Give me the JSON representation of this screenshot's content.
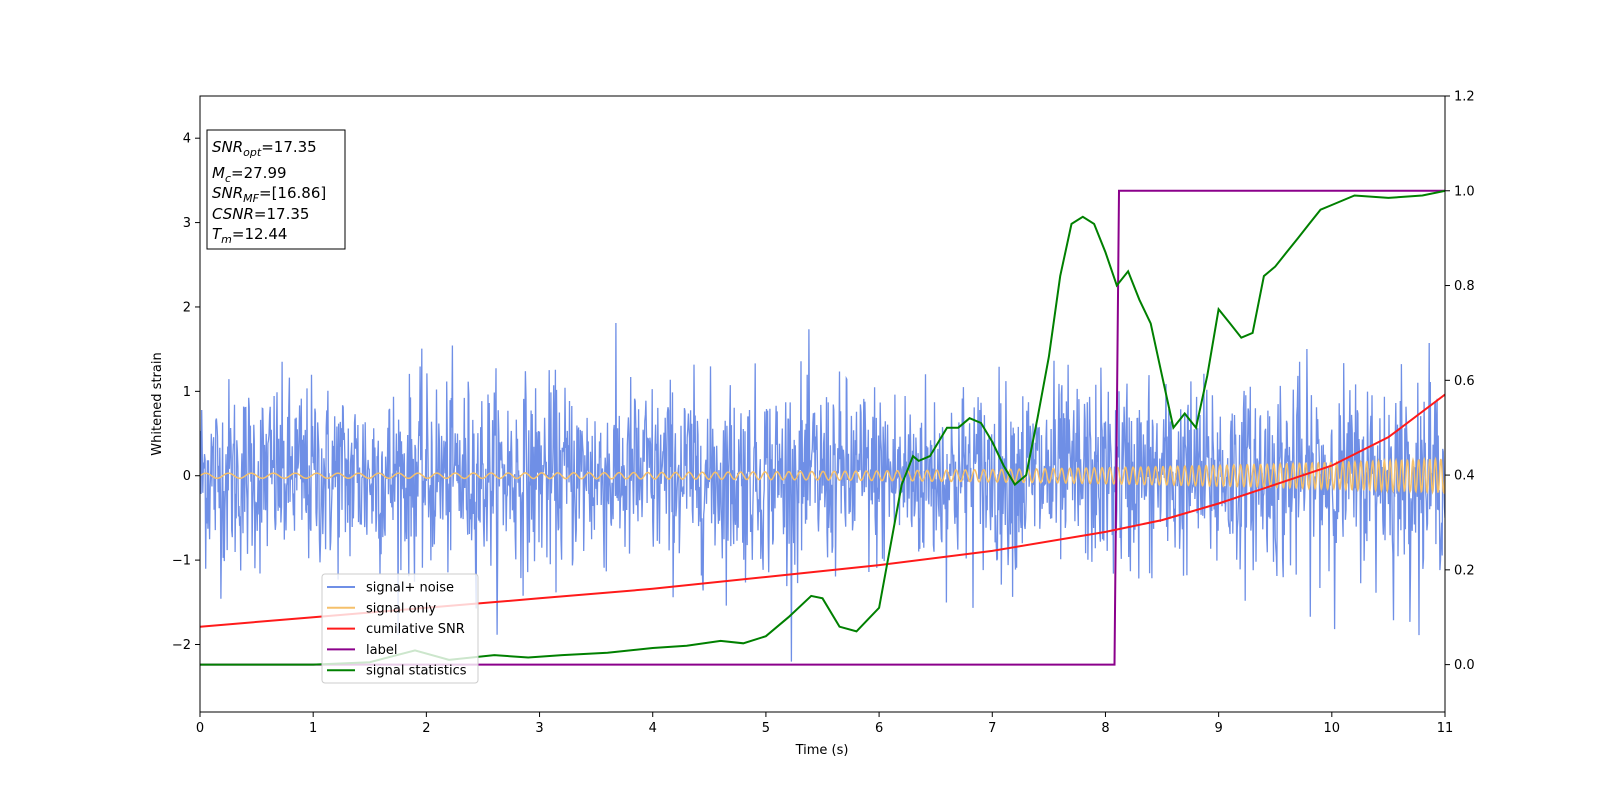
{
  "chart_data": {
    "type": "line",
    "xlabel": "Time (s)",
    "ylabel": "Whitened strain",
    "xlim": [
      0,
      11
    ],
    "ylim_left": [
      -2.8,
      4.5
    ],
    "ylim_right": [
      -0.1,
      1.2
    ],
    "x_ticks": [
      0,
      1,
      2,
      3,
      4,
      5,
      6,
      7,
      8,
      9,
      10,
      11
    ],
    "y_ticks_left": [
      -2,
      -1,
      0,
      1,
      2,
      3,
      4
    ],
    "y_ticks_right": [
      "0.0",
      "0.2",
      "0.4",
      "0.6",
      "0.8",
      "1.0",
      "1.2"
    ],
    "y_ticks_right_values": [
      0.0,
      0.2,
      0.4,
      0.6,
      0.8,
      1.0,
      1.2
    ],
    "grid": false,
    "legend_position": "lower-left",
    "info_box": [
      {
        "sym": "SNR",
        "sub": "opt",
        "val": "=17.35"
      },
      {
        "sym": "M",
        "sub": "c",
        "val": "=27.99"
      },
      {
        "sym": "SNR",
        "sub": "MF",
        "val": "=[16.86]"
      },
      {
        "sym": "CSNR",
        "sub": "",
        "val": "=17.35"
      },
      {
        "sym": "T",
        "sub": "m",
        "val": "=12.44"
      }
    ],
    "series": [
      {
        "name": "signal+ noise",
        "color": "#6f8fe6",
        "axis": "left",
        "description_amplitude_std": 0.55,
        "sample_count": 2200
      },
      {
        "name": "signal only",
        "color": "#f5c06b",
        "axis": "left",
        "chirp": {
          "amp_start": 0.03,
          "amp_end": 0.2,
          "freq_start": 9,
          "freq_end": 20,
          "t_merge": 12.44
        }
      },
      {
        "name": "cumilative SNR",
        "color": "#ff1a1a",
        "axis": "right",
        "x": [
          0,
          1,
          2,
          3,
          4,
          5,
          6,
          7,
          8,
          8.5,
          9,
          9.5,
          10,
          10.5,
          11
        ],
        "y": [
          0.08,
          0.1,
          0.12,
          0.14,
          0.16,
          0.185,
          0.21,
          0.24,
          0.28,
          0.305,
          0.34,
          0.38,
          0.42,
          0.48,
          0.57
        ]
      },
      {
        "name": "label",
        "color": "#8b008b",
        "axis": "right",
        "x": [
          0,
          8.08,
          8.12,
          11
        ],
        "y": [
          0.0,
          0.0,
          1.0,
          1.0
        ]
      },
      {
        "name": "signal statistics",
        "color": "#008000",
        "axis": "right",
        "x": [
          0,
          1,
          1.5,
          1.9,
          2.2,
          2.6,
          2.9,
          3.2,
          3.6,
          4.0,
          4.3,
          4.6,
          4.8,
          5.0,
          5.2,
          5.4,
          5.5,
          5.65,
          5.8,
          5.9,
          6.0,
          6.1,
          6.2,
          6.3,
          6.35,
          6.45,
          6.6,
          6.7,
          6.8,
          6.9,
          7.0,
          7.1,
          7.2,
          7.3,
          7.4,
          7.5,
          7.6,
          7.7,
          7.8,
          7.9,
          8.0,
          8.1,
          8.2,
          8.3,
          8.4,
          8.5,
          8.6,
          8.7,
          8.8,
          8.9,
          9.0,
          9.1,
          9.2,
          9.3,
          9.4,
          9.5,
          9.6,
          9.7,
          9.8,
          9.9,
          10.0,
          10.2,
          10.5,
          10.8,
          11
        ],
        "y": [
          0.0,
          0.0,
          0.005,
          0.03,
          0.01,
          0.02,
          0.015,
          0.02,
          0.025,
          0.035,
          0.04,
          0.05,
          0.045,
          0.06,
          0.1,
          0.145,
          0.14,
          0.08,
          0.07,
          0.095,
          0.12,
          0.25,
          0.38,
          0.44,
          0.43,
          0.44,
          0.5,
          0.5,
          0.52,
          0.51,
          0.47,
          0.42,
          0.38,
          0.4,
          0.52,
          0.65,
          0.82,
          0.93,
          0.945,
          0.93,
          0.87,
          0.8,
          0.83,
          0.77,
          0.72,
          0.61,
          0.5,
          0.53,
          0.5,
          0.61,
          0.75,
          0.72,
          0.69,
          0.7,
          0.82,
          0.84,
          0.87,
          0.9,
          0.93,
          0.96,
          0.97,
          0.99,
          0.985,
          0.99,
          1.0
        ]
      }
    ]
  }
}
